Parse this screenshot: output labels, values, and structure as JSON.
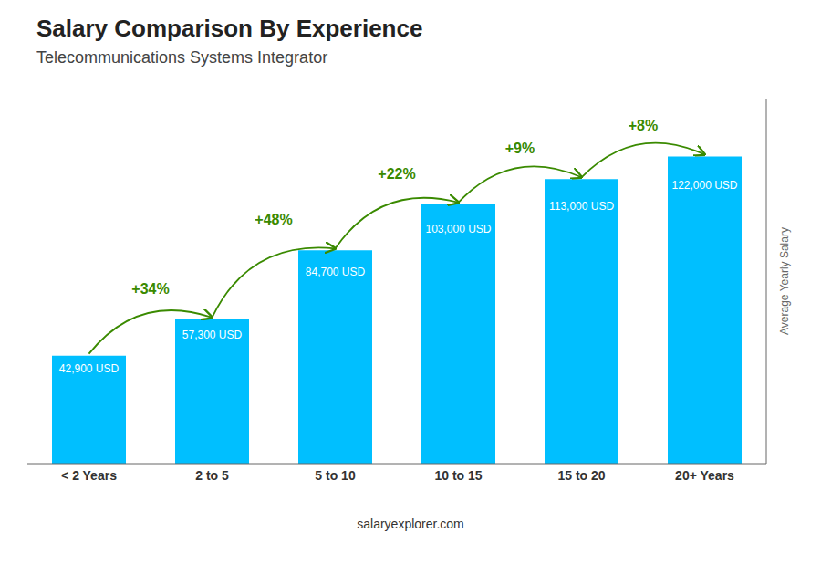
{
  "chart_data": {
    "type": "bar",
    "title": "Salary Comparison By Experience",
    "subtitle": "Telecommunications Systems Integrator",
    "ylabel": "Average Yearly Salary",
    "footer": "salaryexplorer.com",
    "categories": [
      "< 2 Years",
      "2 to 5",
      "5 to 10",
      "10 to 15",
      "15 to 20",
      "20+ Years"
    ],
    "values": [
      42900,
      57300,
      84700,
      103000,
      113000,
      122000
    ],
    "value_labels": [
      "42,900 USD",
      "57,300 USD",
      "84,700 USD",
      "103,000 USD",
      "113,000 USD",
      "122,000 USD"
    ],
    "data_labels": true,
    "annotations": [
      "+34%",
      "+48%",
      "+22%",
      "+9%",
      "+8%"
    ],
    "color": "#00BFFF",
    "ylim": [
      0,
      145000
    ],
    "tick_labels": "x",
    "grid": false
  }
}
